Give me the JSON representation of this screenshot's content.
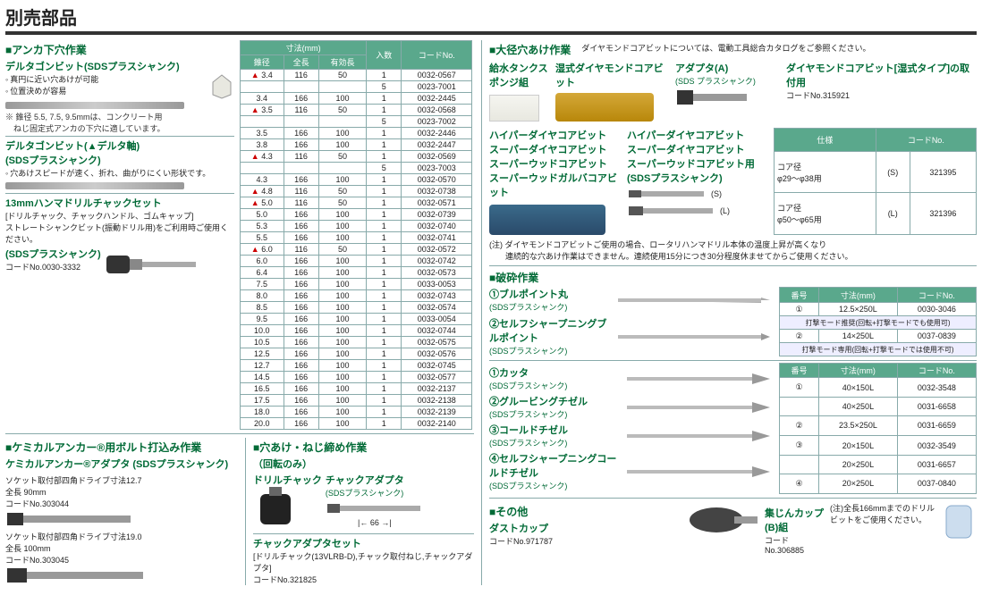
{
  "page_title": "別売部品",
  "left": {
    "anchor": {
      "title": "■アンカ下穴作業",
      "item1": {
        "name": "デルタゴンビット(SDSプラスシャンク)",
        "b1": "真円に近い穴あけが可能",
        "b2": "位置決めが容易",
        "note": "※ 錐径 5.5, 7.5, 9.5mmは、コンクリート用\n　ねじ固定式アンカの下穴に適しています。"
      },
      "item2": {
        "name": "デルタゴンビット(▲デルタ軸)",
        "sub": "(SDSプラスシャンク)",
        "b1": "穴あけスピードが速く、折れ、曲がりにくい形状です。"
      },
      "item3": {
        "name": "13mmハンマドリルチャックセット",
        "sub": "[ドリルチャック、チャックハンドル、ゴムキャップ]",
        "note": "ストレートシャンクビット(振動ドリル用)をご利用時ご使用ください。",
        "shank": "(SDSプラスシャンク)",
        "code": "コードNo.0030-3332"
      },
      "table": {
        "h1": "寸法(mm)",
        "h1a": "錐径",
        "h1b": "全長",
        "h1c": "有効長",
        "h2": "入数",
        "h3": "コードNo.",
        "rows": [
          {
            "t": 1,
            "d": "3.4",
            "l": "116",
            "e": "50",
            "q": "1",
            "c": "0032-0567"
          },
          {
            "t": 0,
            "d": "",
            "l": "",
            "e": "",
            "q": "5",
            "c": "0023-7001"
          },
          {
            "t": 0,
            "d": "3.4",
            "l": "166",
            "e": "100",
            "q": "1",
            "c": "0032-2445"
          },
          {
            "t": 1,
            "d": "3.5",
            "l": "116",
            "e": "50",
            "q": "1",
            "c": "0032-0568"
          },
          {
            "t": 0,
            "d": "",
            "l": "",
            "e": "",
            "q": "5",
            "c": "0023-7002"
          },
          {
            "t": 0,
            "d": "3.5",
            "l": "166",
            "e": "100",
            "q": "1",
            "c": "0032-2446"
          },
          {
            "t": 0,
            "d": "3.8",
            "l": "166",
            "e": "100",
            "q": "1",
            "c": "0032-2447"
          },
          {
            "t": 1,
            "d": "4.3",
            "l": "116",
            "e": "50",
            "q": "1",
            "c": "0032-0569"
          },
          {
            "t": 0,
            "d": "",
            "l": "",
            "e": "",
            "q": "5",
            "c": "0023-7003"
          },
          {
            "t": 0,
            "d": "4.3",
            "l": "166",
            "e": "100",
            "q": "1",
            "c": "0032-0570"
          },
          {
            "t": 1,
            "d": "4.8",
            "l": "116",
            "e": "50",
            "q": "1",
            "c": "0032-0738"
          },
          {
            "t": 1,
            "d": "5.0",
            "l": "116",
            "e": "50",
            "q": "1",
            "c": "0032-0571"
          },
          {
            "t": 0,
            "d": "5.0",
            "l": "166",
            "e": "100",
            "q": "1",
            "c": "0032-0739"
          },
          {
            "t": 0,
            "d": "5.3",
            "l": "166",
            "e": "100",
            "q": "1",
            "c": "0032-0740"
          },
          {
            "t": 0,
            "d": "5.5",
            "l": "166",
            "e": "100",
            "q": "1",
            "c": "0032-0741"
          },
          {
            "t": 1,
            "d": "6.0",
            "l": "116",
            "e": "50",
            "q": "1",
            "c": "0032-0572"
          },
          {
            "t": 0,
            "d": "6.0",
            "l": "166",
            "e": "100",
            "q": "1",
            "c": "0032-0742"
          },
          {
            "t": 0,
            "d": "6.4",
            "l": "166",
            "e": "100",
            "q": "1",
            "c": "0032-0573"
          },
          {
            "t": 0,
            "d": "7.5",
            "l": "166",
            "e": "100",
            "q": "1",
            "c": "0033-0053"
          },
          {
            "t": 0,
            "d": "8.0",
            "l": "166",
            "e": "100",
            "q": "1",
            "c": "0032-0743"
          },
          {
            "t": 0,
            "d": "8.5",
            "l": "166",
            "e": "100",
            "q": "1",
            "c": "0032-0574"
          },
          {
            "t": 0,
            "d": "9.5",
            "l": "166",
            "e": "100",
            "q": "1",
            "c": "0033-0054"
          },
          {
            "t": 0,
            "d": "10.0",
            "l": "166",
            "e": "100",
            "q": "1",
            "c": "0032-0744"
          },
          {
            "t": 0,
            "d": "10.5",
            "l": "166",
            "e": "100",
            "q": "1",
            "c": "0032-0575"
          },
          {
            "t": 0,
            "d": "12.5",
            "l": "166",
            "e": "100",
            "q": "1",
            "c": "0032-0576"
          },
          {
            "t": 0,
            "d": "12.7",
            "l": "166",
            "e": "100",
            "q": "1",
            "c": "0032-0745"
          },
          {
            "t": 0,
            "d": "14.5",
            "l": "166",
            "e": "100",
            "q": "1",
            "c": "0032-0577"
          },
          {
            "t": 0,
            "d": "16.5",
            "l": "166",
            "e": "100",
            "q": "1",
            "c": "0032-2137"
          },
          {
            "t": 0,
            "d": "17.5",
            "l": "166",
            "e": "100",
            "q": "1",
            "c": "0032-2138"
          },
          {
            "t": 0,
            "d": "18.0",
            "l": "166",
            "e": "100",
            "q": "1",
            "c": "0032-2139"
          },
          {
            "t": 0,
            "d": "20.0",
            "l": "166",
            "e": "100",
            "q": "1",
            "c": "0032-2140"
          }
        ]
      }
    },
    "chem": {
      "title": "■ケミカルアンカー®用ボルト打込み作業",
      "sub": "ケミカルアンカー®アダプタ (SDSプラスシャンク)",
      "r1a": "ソケット取付部四角ドライブ寸法12.7",
      "r1b": "全長 90mm",
      "r1c": "コードNo.303044",
      "r2a": "ソケット取付部四角ドライブ寸法19.0",
      "r2b": "全長 100mm",
      "r2c": "コードNo.303045"
    },
    "drill": {
      "title": "■穴あけ・ねじ締め作業",
      "sub": "（回転のみ）",
      "c1": "ドリルチャック",
      "c2": "チャックアダプタ",
      "c2s": "(SDSプラスシャンク)",
      "dim": "66",
      "set": "チャックアダプタセット",
      "setnote": "[ドリルチャック(13VLRB-D),チャック取付ねじ,チャックアダプタ]",
      "code": "コードNo.321825"
    }
  },
  "right": {
    "large": {
      "title": "■大径穴あけ作業",
      "note": "ダイヤモンドコアビットについては、電動工具総合カタログをご参照ください。",
      "lbl1": "給水タンクスポンジ組",
      "lbl2": "湿式ダイヤモンドコアビット",
      "lbl3": "アダプタ(A)",
      "lbl3s": "(SDS プラスシャンク)",
      "lbl4": "ダイヤモンドコアビット[湿式タイプ]の取付用",
      "lbl4c": "コードNo.315921",
      "grp1": "ハイパーダイヤコアビット\nスーパーダイヤコアビット\nスーパーウッドコアビット\nスーパーウッドガルバコアビット",
      "grp2": "ハイパーダイヤコアビット\nスーパーダイヤコアビット\nスーパーウッドコアビット用\n(SDSプラスシャンク)",
      "sL": "(S)",
      "lL": "(L)",
      "spec_h1": "仕様",
      "spec_h2": "コードNo.",
      "spec1a": "コア径\nφ29～φ38用",
      "spec1b": "(S)",
      "spec1c": "321395",
      "spec2a": "コア径\nφ50～φ65用",
      "spec2b": "(L)",
      "spec2c": "321396",
      "caution": "(注) ダイヤモンドコアビットご使用の場合、ロータリハンマドリル本体の温度上昇が高くなり\n　　連続的な穴あけ作業はできません。連続使用15分につき30分程度休ませてからご使用ください。"
    },
    "crush": {
      "title": "■破砕作業",
      "i1": "①ブルポイント丸",
      "i1s": "(SDSプラスシャンク)",
      "i2": "②セルフシャープニングブルポイント",
      "i2s": "(SDSプラスシャンク)",
      "th1": "番号",
      "th2": "寸法(mm)",
      "th3": "コードNo.",
      "r1n": "①",
      "r1d": "12.5×250L",
      "r1c": "0030-3046",
      "r1note": "打撃モード推奨(回転+打撃モードでも使用可)",
      "r2n": "②",
      "r2d": "14×250L",
      "r2c": "0037-0839",
      "r2note": "打撃モード専用(回転+打撃モードでは使用不可)",
      "c1": "①カッタ",
      "c1s": "(SDSプラスシャンク)",
      "c2": "②グルービングチゼル",
      "c2s": "(SDSプラスシャンク)",
      "c3": "③コールドチゼル",
      "c3s": "(SDSプラスシャンク)",
      "c4": "④セルフシャープニングコールドチゼル",
      "c4s": "(SDSプラスシャンク)",
      "tb": [
        {
          "n": "①",
          "d": "40×150L",
          "c": "0032-3548"
        },
        {
          "n": "",
          "d": "40×250L",
          "c": "0031-6658"
        },
        {
          "n": "②",
          "d": "23.5×250L",
          "c": "0031-6659"
        },
        {
          "n": "③",
          "d": "20×150L",
          "c": "0032-3549"
        },
        {
          "n": "",
          "d": "20×250L",
          "c": "0031-6657"
        },
        {
          "n": "④",
          "d": "20×250L",
          "c": "0037-0840"
        }
      ]
    },
    "other": {
      "title": "■その他",
      "d1": "ダストカップ",
      "d1c": "コードNo.971787",
      "d2": "集じんカップ(B)組",
      "d2c": "コードNo.306885",
      "note": "(注)全長166mmまでのドリルビットをご使用ください。"
    }
  }
}
